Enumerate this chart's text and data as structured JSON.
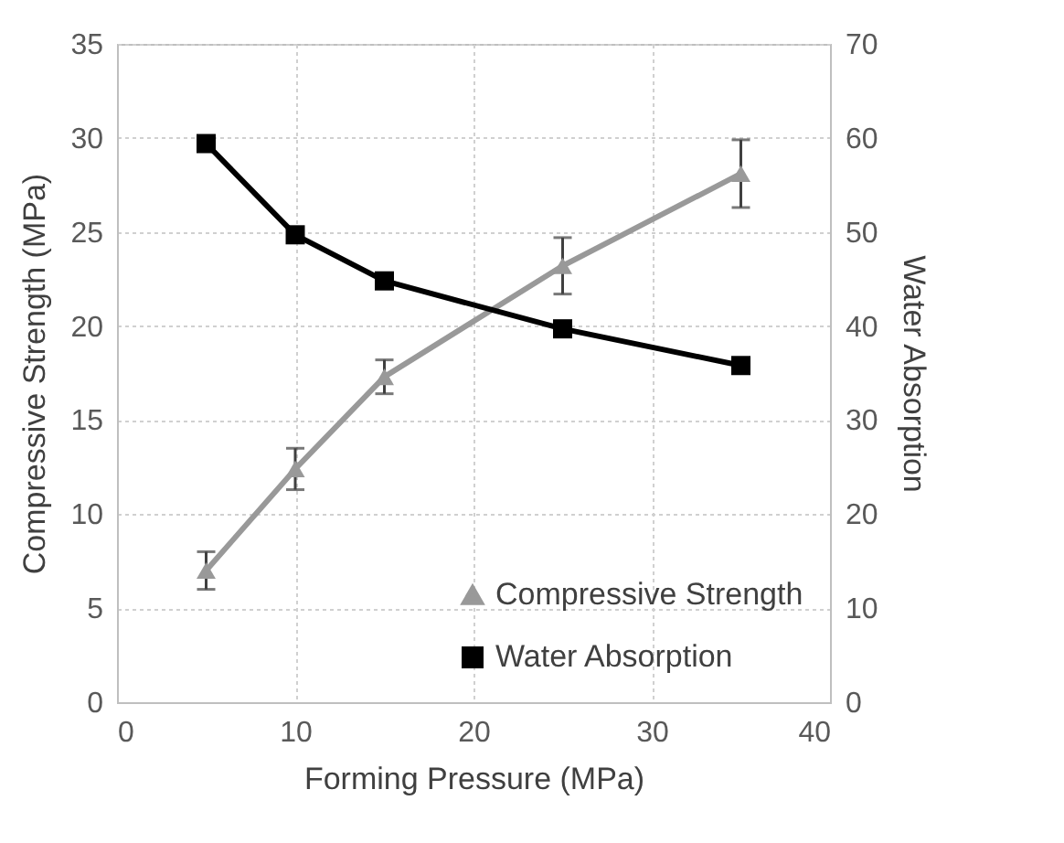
{
  "chart_data": {
    "type": "line",
    "xlabel": "Forming Pressure (MPa)",
    "ylabel": "Compressive Strength (MPa)",
    "y2label": "Water Absorption",
    "x": [
      5,
      10,
      15,
      25,
      35
    ],
    "series": [
      {
        "name": "Compressive Strength",
        "color": "#999999",
        "marker": "triangle",
        "values": [
          7.0,
          12.4,
          17.3,
          23.2,
          28.1
        ],
        "errors": [
          1.0,
          1.1,
          0.9,
          1.5,
          1.8
        ]
      },
      {
        "name": "Water Absorption",
        "color": "#000000",
        "marker": "square",
        "axis": "y2",
        "values": [
          59.4,
          49.7,
          44.8,
          39.7,
          35.8
        ]
      }
    ],
    "xlim": [
      0,
      40
    ],
    "xticks": [
      0,
      10,
      20,
      30,
      40
    ],
    "ylim": [
      0,
      35
    ],
    "yticks": [
      0,
      5,
      10,
      15,
      20,
      25,
      30,
      35
    ],
    "y2lim": [
      0,
      70
    ],
    "y2ticks": [
      0,
      10,
      20,
      30,
      40,
      50,
      60,
      70
    ],
    "grid": true,
    "legend": "bottom right"
  }
}
